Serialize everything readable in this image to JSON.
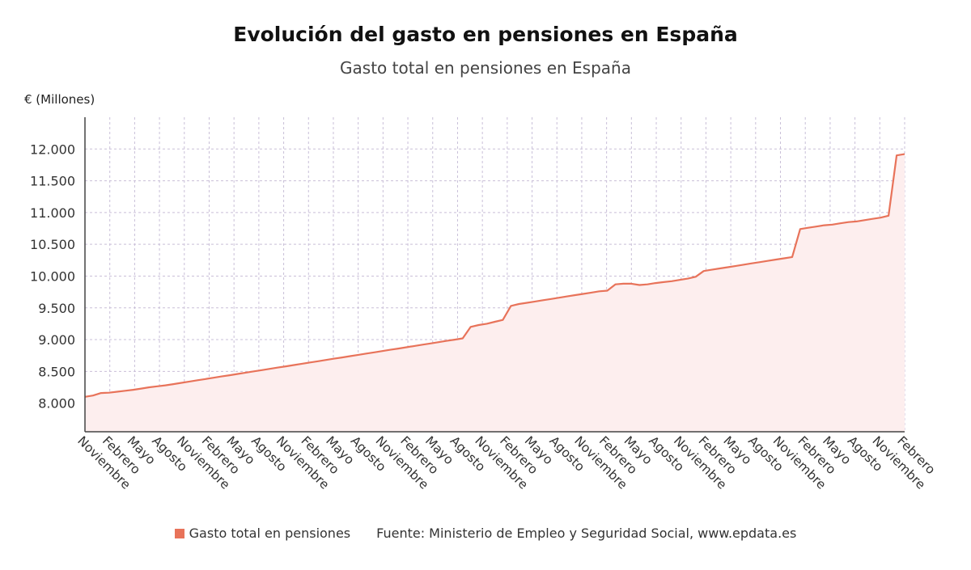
{
  "chart_data": {
    "type": "area",
    "title": "Evolución del gasto en pensiones en España",
    "subtitle": "Gasto total en pensiones en España",
    "ylabel": "€ (Millones)",
    "ylim": [
      7550,
      12500
    ],
    "yticks": [
      8000,
      8500,
      9000,
      9500,
      10000,
      10500,
      11000,
      11500,
      12000
    ],
    "ytick_labels": [
      "8.000",
      "8.500",
      "9.000",
      "9.500",
      "10.000",
      "10.500",
      "11.000",
      "11.500",
      "12.000"
    ],
    "xtick_labels": [
      "Noviembre",
      "Febrero",
      "Mayo",
      "Agosto",
      "Noviembre",
      "Febrero",
      "Mayo",
      "Agosto",
      "Noviembre",
      "Febrero",
      "Mayo",
      "Agosto",
      "Noviembre",
      "Febrero",
      "Mayo",
      "Agosto",
      "Noviembre",
      "Febrero",
      "Mayo",
      "Agosto",
      "Noviembre",
      "Febrero",
      "Mayo",
      "Agosto",
      "Noviembre",
      "Febrero",
      "Mayo",
      "Agosto",
      "Noviembre",
      "Febrero",
      "Mayo",
      "Agosto",
      "Noviembre",
      "Febrero"
    ],
    "grid": true,
    "series": [
      {
        "name": "Gasto total en pensiones",
        "color": "#e8735a",
        "fill": "#fdeeee",
        "values": [
          8100,
          8120,
          8160,
          8165,
          8180,
          8195,
          8210,
          8230,
          8250,
          8265,
          8280,
          8300,
          8320,
          8340,
          8360,
          8380,
          8400,
          8420,
          8440,
          8460,
          8480,
          8500,
          8520,
          8540,
          8560,
          8580,
          8600,
          8620,
          8640,
          8660,
          8680,
          8700,
          8720,
          8740,
          8760,
          8780,
          8800,
          8820,
          8840,
          8860,
          8880,
          8900,
          8920,
          8940,
          8960,
          8980,
          9000,
          9020,
          9200,
          9230,
          9250,
          9280,
          9310,
          9530,
          9560,
          9580,
          9600,
          9620,
          9640,
          9660,
          9680,
          9700,
          9720,
          9740,
          9760,
          9770,
          9870,
          9880,
          9880,
          9860,
          9870,
          9890,
          9905,
          9920,
          9940,
          9960,
          9990,
          10080,
          10100,
          10120,
          10140,
          10160,
          10180,
          10200,
          10220,
          10240,
          10260,
          10280,
          10300,
          10740,
          10760,
          10780,
          10800,
          10810,
          10830,
          10850,
          10860,
          10880,
          10900,
          10920,
          10950,
          11900,
          11920
        ]
      }
    ]
  },
  "legend": {
    "series_label": "Gasto total en pensiones",
    "source_text": "Fuente: Ministerio de Empleo y Seguridad Social, www.epdata.es"
  },
  "colors": {
    "line": "#e8735a",
    "fill": "#fdeeee",
    "grid": "#c9bfd8",
    "axis": "#444444"
  }
}
